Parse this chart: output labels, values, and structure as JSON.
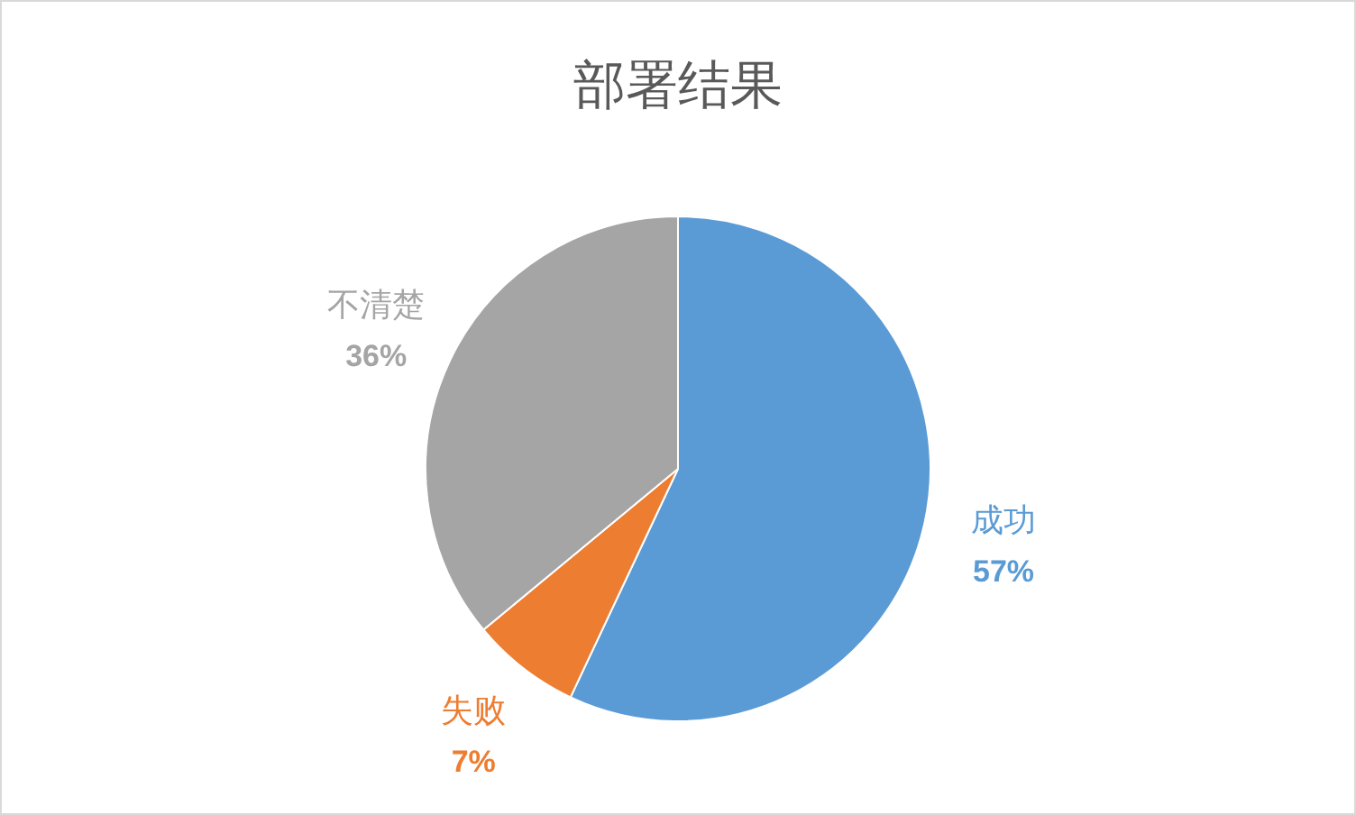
{
  "chart_data": {
    "type": "pie",
    "title": "部署结果",
    "categories": [
      "成功",
      "失败",
      "不清楚"
    ],
    "values": [
      57,
      7,
      36
    ],
    "colors": [
      "#5b9bd5",
      "#ed7d31",
      "#a5a5a5"
    ],
    "value_labels": [
      "57%",
      "7%",
      "36%"
    ]
  }
}
